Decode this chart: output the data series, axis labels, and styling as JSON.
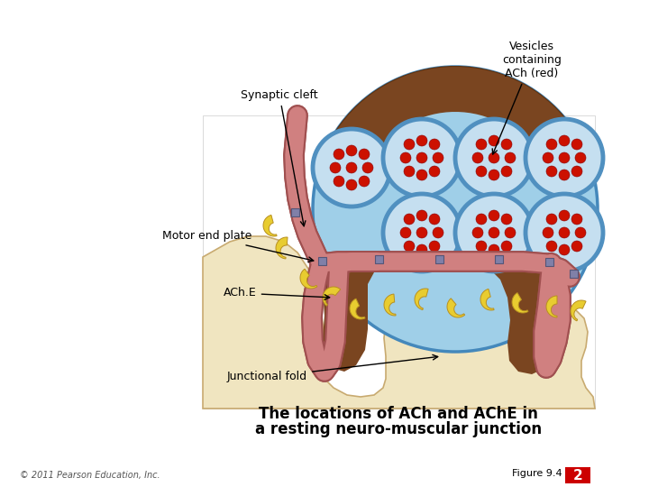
{
  "title_line1": "The locations of ACh and AChE in",
  "title_line2": "a resting neuro-muscular junction",
  "title_fontsize": 12,
  "copyright": "© 2011 Pearson Education, Inc.",
  "figure_label": "Figure 9.4",
  "figure_number": "2",
  "figure_number_bg": "#cc0000",
  "bg_color": "#ffffff",
  "label_synaptic_cleft": "Synaptic cleft",
  "label_vesicles": "Vesicles\ncontaining\nACh (red)",
  "label_motor_end_plate": "Motor end plate",
  "label_ache": "ACh.E",
  "label_junctional_fold": "Junctional fold",
  "nerve_terminal_color": "#d08080",
  "nerve_terminal_border": "#a05050",
  "muscle_color": "#f0e5c0",
  "nerve_bg_color": "#7a4520",
  "synaptic_cleft_color": "#9fcfe8",
  "vesicle_outer_color": "#5090c0",
  "vesicle_inner_color": "#c5dff0",
  "ach_dot_color": "#cc1100",
  "square_marker_color": "#8080a8",
  "crescent_color": "#e8cc30",
  "arrow_color": "#000000",
  "label_fontsize": 9
}
